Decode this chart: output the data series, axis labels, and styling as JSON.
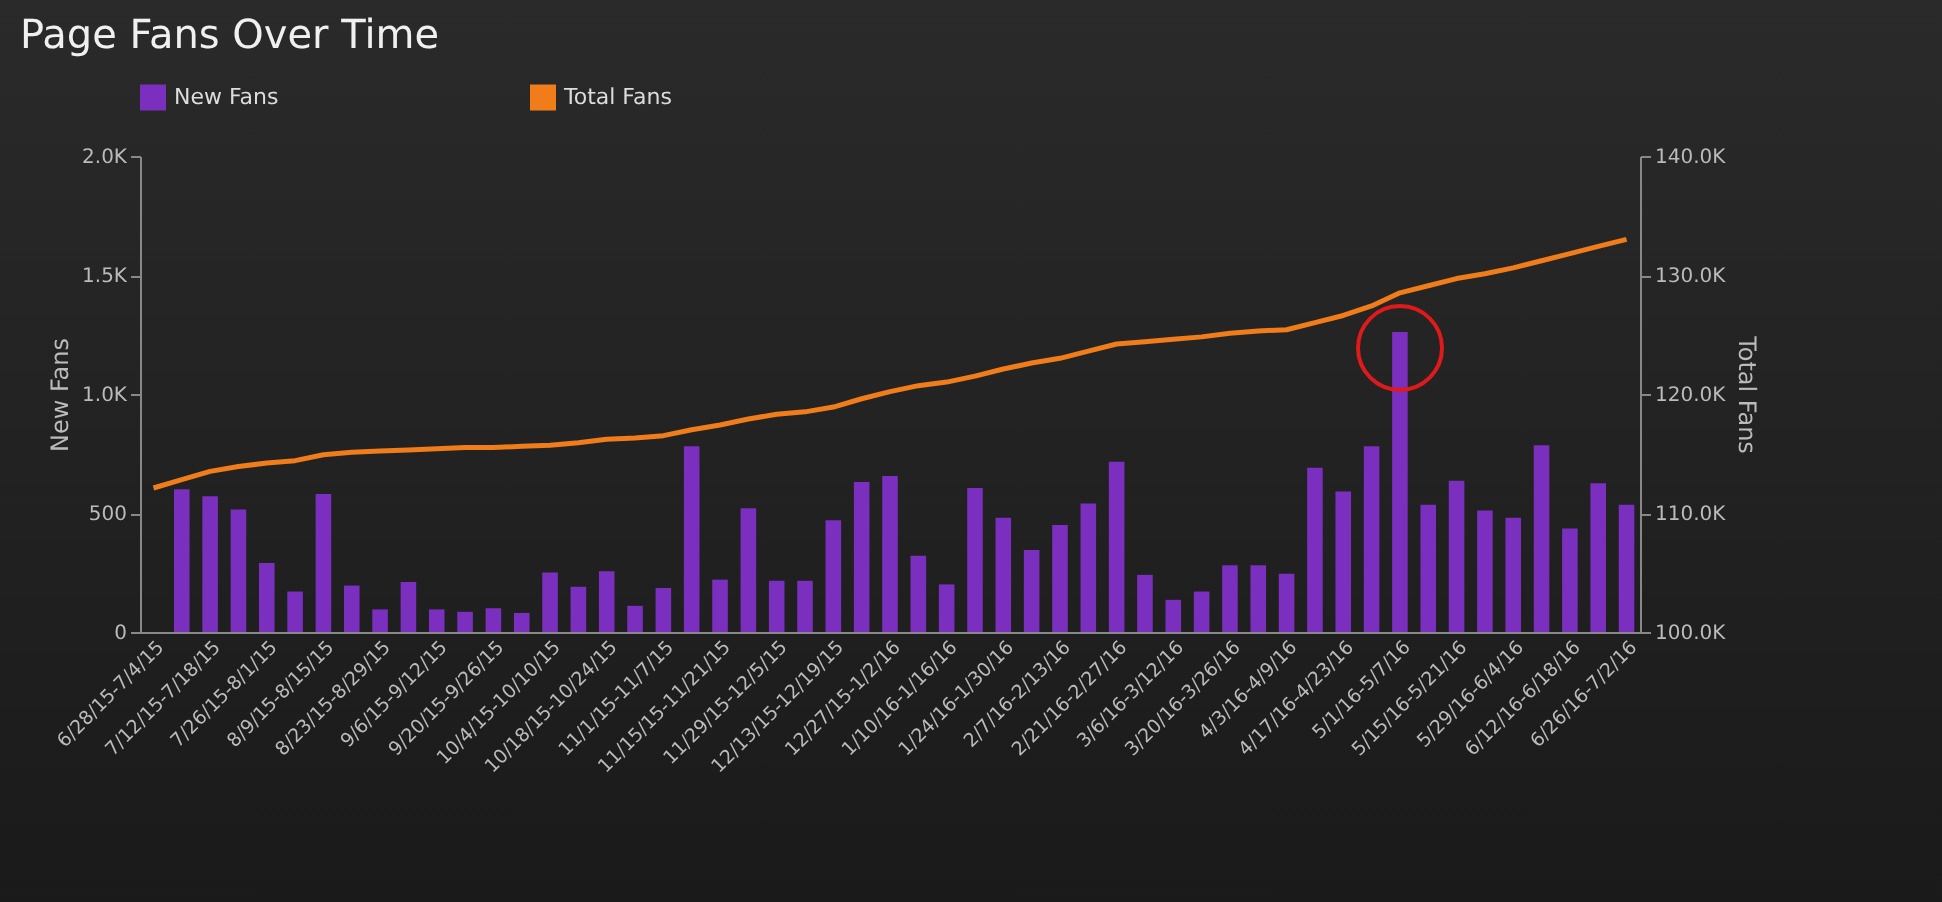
{
  "chart_data": {
    "type": "bar",
    "title": "Page Fans Over Time",
    "ylabel": "New Fans",
    "y2label": "Total Fans",
    "categories": [
      "6/28/15-7/4/15",
      null,
      "7/12/15-7/18/15",
      null,
      "7/26/15-8/1/15",
      null,
      "8/9/15-8/15/15",
      null,
      "8/23/15-8/29/15",
      null,
      "9/6/15-9/12/15",
      null,
      "9/20/15-9/26/15",
      null,
      "10/4/15-10/10/15",
      null,
      "10/18/15-10/24/15",
      null,
      "11/1/15-11/7/15",
      null,
      "11/15/15-11/21/15",
      null,
      "11/29/15-12/5/15",
      null,
      "12/13/15-12/19/15",
      null,
      "12/27/15-1/2/16",
      null,
      "1/10/16-1/16/16",
      null,
      "1/24/16-1/30/16",
      null,
      "2/7/16-2/13/16",
      null,
      "2/21/16-2/27/16",
      null,
      "3/6/16-3/12/16",
      null,
      "3/20/16-3/26/16",
      null,
      "4/3/16-4/9/16",
      null,
      "4/17/16-4/23/16",
      null,
      "5/1/16-5/7/16",
      null,
      "5/15/16-5/21/16",
      null,
      "5/29/16-6/4/16",
      null,
      "6/12/16-6/18/16",
      null,
      "6/26/16-7/2/16"
    ],
    "series": [
      {
        "name": "New Fans",
        "color": "#7b2fbe",
        "values": [
          0,
          600,
          570,
          515,
          290,
          170,
          580,
          195,
          95,
          210,
          95,
          85,
          100,
          80,
          250,
          190,
          255,
          110,
          185,
          780,
          220,
          520,
          215,
          215,
          470,
          630,
          655,
          320,
          200,
          605,
          480,
          345,
          450,
          540,
          715,
          240,
          135,
          170,
          280,
          280,
          245,
          690,
          590,
          780,
          1260,
          535,
          635,
          510,
          480,
          785,
          435,
          625,
          535
        ]
      },
      {
        "name": "Total Fans",
        "type": "line",
        "axis": "y2",
        "color": "#f07c1a",
        "values": [
          112100,
          112800,
          113500,
          113900,
          114200,
          114400,
          114900,
          115100,
          115200,
          115300,
          115400,
          115500,
          115500,
          115600,
          115700,
          115900,
          116200,
          116300,
          116500,
          117000,
          117400,
          117900,
          118300,
          118500,
          118900,
          119600,
          120200,
          120700,
          121000,
          121500,
          122100,
          122600,
          123000,
          123600,
          124200,
          124400,
          124600,
          124800,
          125100,
          125300,
          125400,
          126000,
          126600,
          127400,
          128500,
          129100,
          129700,
          130100,
          130600,
          131200,
          131800,
          132400,
          133000
        ]
      }
    ],
    "ylim": [
      0,
      2000
    ],
    "yticks": [
      0,
      500,
      {
        "value": 1000,
        "label": "1.0K"
      },
      {
        "value": 1500,
        "label": "1.5K"
      },
      {
        "value": 2000,
        "label": "2.0K"
      }
    ],
    "y2lim": [
      100000,
      140000
    ],
    "y2ticks": [
      {
        "value": 100000,
        "label": "100.0K"
      },
      {
        "value": 110000,
        "label": "110.0K"
      },
      {
        "value": 120000,
        "label": "120.0K"
      },
      {
        "value": 130000,
        "label": "130.0K"
      },
      {
        "value": 140000,
        "label": "140.0K"
      }
    ],
    "grid": false,
    "legend": "top"
  }
}
